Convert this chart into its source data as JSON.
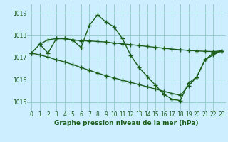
{
  "title": "Graphe pression niveau de la mer (hPa)",
  "background_color": "#cceeff",
  "grid_color": "#99cccc",
  "line_color": "#1a5e1a",
  "x_ticks": [
    0,
    1,
    2,
    3,
    4,
    5,
    6,
    7,
    8,
    9,
    10,
    11,
    12,
    13,
    14,
    15,
    16,
    17,
    18,
    19,
    20,
    21,
    22,
    23
  ],
  "y_ticks": [
    1015,
    1016,
    1017,
    1018,
    1019
  ],
  "ylim": [
    1014.6,
    1019.4
  ],
  "xlim": [
    -0.5,
    23.5
  ],
  "line1_x": [
    0,
    1,
    2,
    3,
    4,
    5,
    6,
    7,
    8,
    9,
    10,
    11,
    12,
    13,
    14,
    15,
    16,
    17,
    18,
    19,
    20,
    21,
    22,
    23
  ],
  "line1_y": [
    1017.2,
    1017.6,
    1017.8,
    1017.85,
    1017.85,
    1017.8,
    1017.75,
    1017.75,
    1017.72,
    1017.7,
    1017.65,
    1017.62,
    1017.58,
    1017.54,
    1017.5,
    1017.46,
    1017.42,
    1017.38,
    1017.35,
    1017.32,
    1017.3,
    1017.28,
    1017.27,
    1017.3
  ],
  "line2_x": [
    1,
    2,
    3,
    4,
    5,
    6,
    7,
    8,
    9,
    10,
    11,
    12,
    13,
    14,
    15,
    16,
    17,
    18,
    19,
    20,
    21,
    22,
    23
  ],
  "line2_y": [
    1017.6,
    1017.2,
    1017.85,
    1017.85,
    1017.78,
    1017.45,
    1018.45,
    1018.92,
    1018.6,
    1018.38,
    1017.85,
    1017.1,
    1016.55,
    1016.15,
    1015.75,
    1015.35,
    1015.12,
    1015.06,
    1015.85,
    1016.12,
    1016.9,
    1017.2,
    1017.3
  ],
  "line3_x": [
    0,
    1,
    2,
    3,
    4,
    5,
    6,
    7,
    8,
    9,
    10,
    11,
    12,
    13,
    14,
    15,
    16,
    17,
    18,
    19,
    20,
    21,
    22,
    23
  ],
  "line3_y": [
    1017.2,
    1017.12,
    1017.02,
    1016.9,
    1016.8,
    1016.68,
    1016.55,
    1016.42,
    1016.3,
    1016.18,
    1016.08,
    1015.98,
    1015.88,
    1015.78,
    1015.68,
    1015.58,
    1015.48,
    1015.38,
    1015.3,
    1015.72,
    1016.12,
    1016.9,
    1017.12,
    1017.3
  ]
}
